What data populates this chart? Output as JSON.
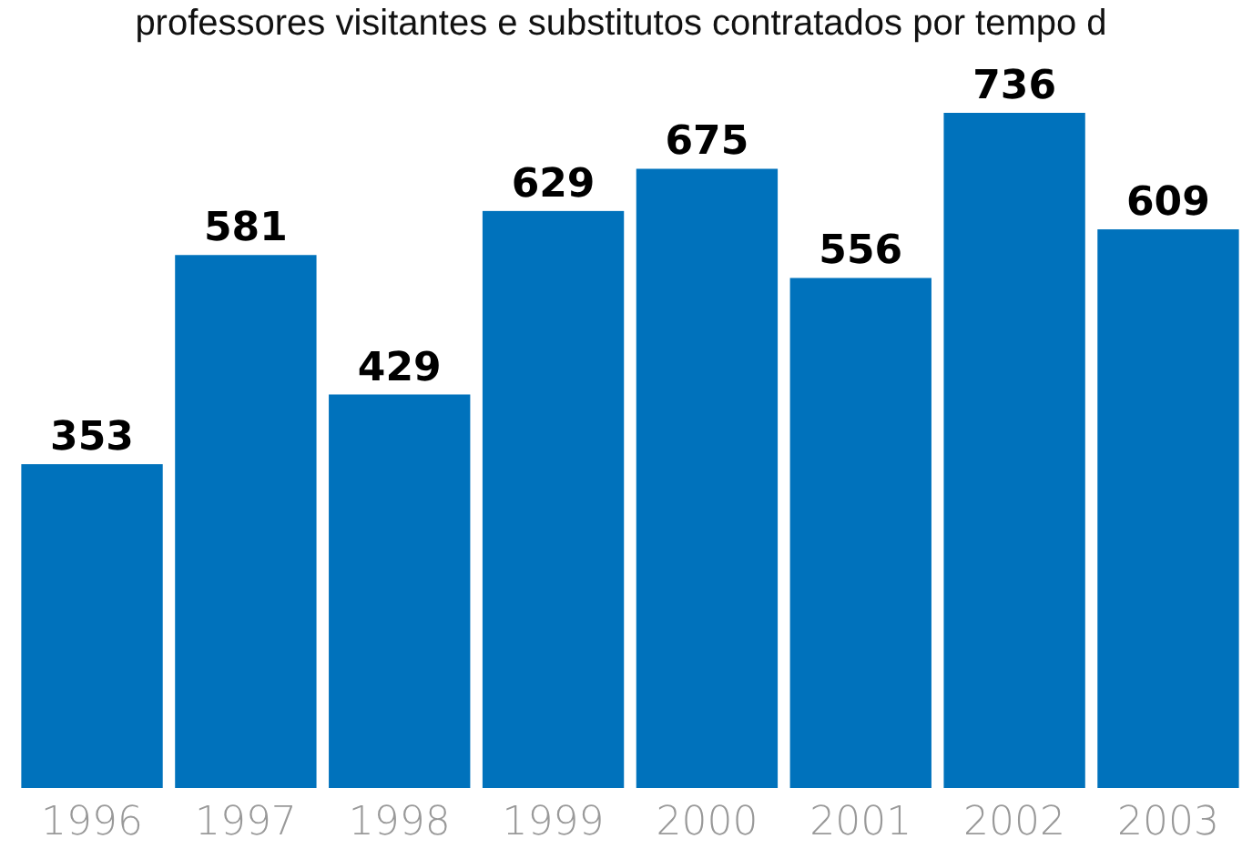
{
  "chart_data": {
    "type": "bar",
    "title": "professores visitantes e substitutos contratados por tempo d",
    "categories": [
      "1996",
      "1997",
      "1998",
      "1999",
      "2000",
      "2001",
      "2002",
      "2003"
    ],
    "values": [
      353,
      581,
      429,
      629,
      675,
      556,
      736,
      609
    ],
    "color": "#0072bc",
    "data_labels": true,
    "grid": false,
    "legend": false
  }
}
